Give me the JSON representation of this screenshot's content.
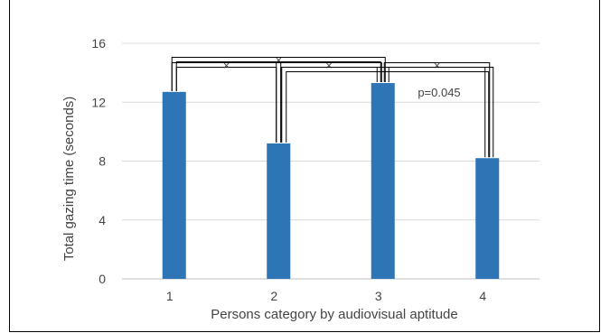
{
  "chart_data": {
    "type": "bar",
    "categories": [
      "1",
      "2",
      "3",
      "4"
    ],
    "values": [
      12.7,
      9.2,
      13.3,
      8.2
    ],
    "xlabel": "Persons category by audiovisual aptitude",
    "ylabel": "Total gazing time (seconds)",
    "ylim": [
      0,
      16
    ],
    "yticks": [
      "0",
      "4",
      "8",
      "12",
      "16"
    ],
    "grid": true,
    "legend": "none",
    "bar_color": "#2E75B6",
    "comparisons": [
      {
        "pair": [
          "1",
          "2"
        ],
        "marker": "×"
      },
      {
        "pair": [
          "1",
          "3"
        ],
        "marker": "×"
      },
      {
        "pair": [
          "2",
          "3"
        ],
        "marker": "×"
      },
      {
        "pair": [
          "3",
          "4"
        ],
        "marker": "×"
      },
      {
        "pair": [
          "2",
          "4"
        ],
        "label": "p=0.045"
      }
    ]
  }
}
